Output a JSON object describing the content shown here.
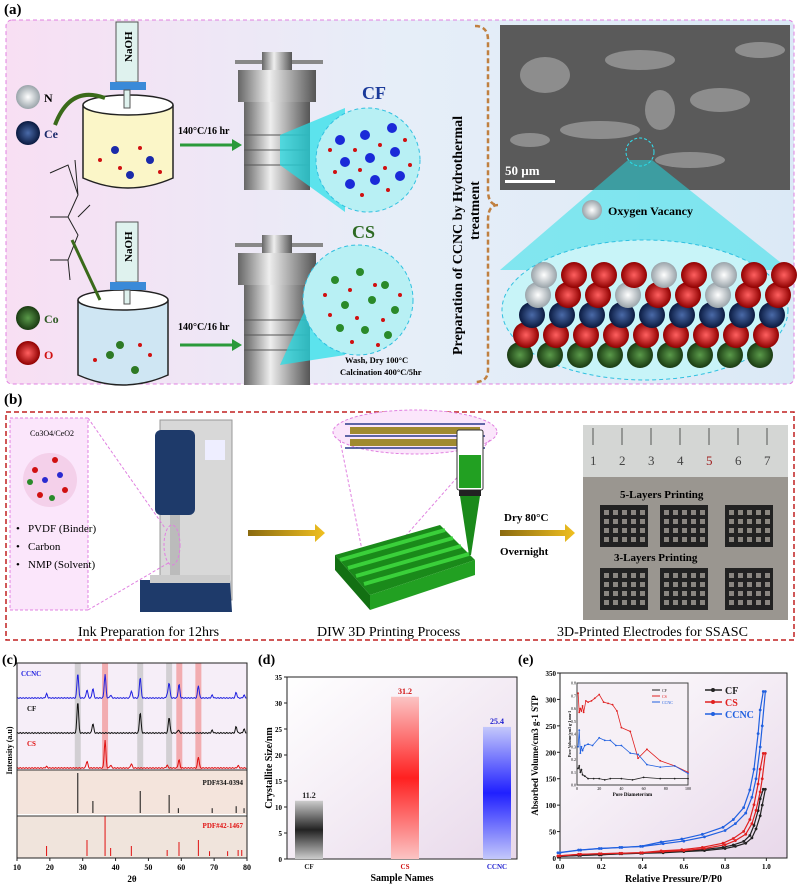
{
  "panel_a": {
    "label": "(a)",
    "legend": {
      "n": "N",
      "ce": "Ce",
      "co": "Co",
      "o": "O"
    },
    "reagent": "NaOH",
    "condition": "140°C/16 hr",
    "product_cf": "CF",
    "product_cs": "CS",
    "post_treatment_1": "Wash, Dry 100°C",
    "post_treatment_2": "Calcination 400°C/5hr",
    "side_title_1": "Preparation of CCNC by Hydrothermal",
    "side_title_2": "treatment",
    "scale_bar": "50 µm",
    "vacancy_label": "Oxygen Vacancy",
    "colors": {
      "n": "#c8d0d4",
      "ce": "#1a2a5a",
      "co": "#2e5a24",
      "o": "#d01010",
      "border": "#e080e0"
    }
  },
  "panel_b": {
    "label": "(b)",
    "ink_title": "Co3O4/CeO2",
    "ink_items": [
      "PVDF (Binder)",
      "Carbon",
      "NMP (Solvent)"
    ],
    "step1": "Ink Preparation for 12hrs",
    "step2": "DIW 3D Printing Process",
    "step3": "3D-Printed Electrodes for SSASC",
    "dry_1": "Dry 80°C",
    "dry_2": "Overnight",
    "ruler_ticks": [
      "1",
      "2",
      "3",
      "4",
      "5",
      "6",
      "7"
    ],
    "layers_5": "5-Layers Printing",
    "layers_3": "3-Layers Printing",
    "colors": {
      "border": "#c02020",
      "print": "#22b022"
    }
  },
  "chart_data": [
    {
      "panel": "(c)",
      "type": "line",
      "xlabel": "2θ",
      "ylabel": "Intensity (a.u)",
      "xlim": [
        10,
        80
      ],
      "xticks": [
        "10",
        "20",
        "30",
        "40",
        "50",
        "60",
        "70",
        "80"
      ],
      "series": [
        {
          "name": "CCNC",
          "color": "#2020e0",
          "peaks": [
            [
              19.0,
              0.15
            ],
            [
              28.5,
              0.9
            ],
            [
              31.3,
              0.3
            ],
            [
              33.1,
              0.35
            ],
            [
              36.8,
              0.85
            ],
            [
              38.5,
              0.1
            ],
            [
              44.8,
              0.25
            ],
            [
              47.5,
              0.75
            ],
            [
              55.7,
              0.12
            ],
            [
              56.3,
              0.55
            ],
            [
              59.3,
              0.5
            ],
            [
              65.2,
              0.45
            ],
            [
              69.4,
              0.1
            ],
            [
              76.7,
              0.2
            ],
            [
              79.1,
              0.1
            ]
          ]
        },
        {
          "name": "CF",
          "color": "#111111",
          "peaks": [
            [
              28.5,
              1.0
            ],
            [
              33.1,
              0.3
            ],
            [
              47.5,
              0.65
            ],
            [
              56.3,
              0.5
            ],
            [
              59.1,
              0.1
            ],
            [
              69.4,
              0.08
            ],
            [
              76.7,
              0.2
            ],
            [
              79.1,
              0.12
            ]
          ]
        },
        {
          "name": "CS",
          "color": "#e01010",
          "peaks": [
            [
              19.0,
              0.05
            ],
            [
              31.3,
              0.25
            ],
            [
              36.8,
              1.0
            ],
            [
              38.5,
              0.1
            ],
            [
              44.8,
              0.15
            ],
            [
              55.7,
              0.1
            ],
            [
              59.3,
              0.3
            ],
            [
              65.2,
              0.4
            ],
            [
              77.3,
              0.08
            ]
          ]
        }
      ],
      "references": [
        {
          "name": "PDF#34-0394",
          "color": "#111111",
          "lines": [
            [
              28.5,
              1.0
            ],
            [
              33.1,
              0.3
            ],
            [
              47.5,
              0.55
            ],
            [
              56.3,
              0.45
            ],
            [
              59.1,
              0.12
            ],
            [
              69.4,
              0.12
            ],
            [
              76.7,
              0.17
            ],
            [
              79.1,
              0.12
            ]
          ]
        },
        {
          "name": "PDF#42-1467",
          "color": "#e01010",
          "lines": [
            [
              19.0,
              0.25
            ],
            [
              31.3,
              0.4
            ],
            [
              36.8,
              1.0
            ],
            [
              38.5,
              0.2
            ],
            [
              44.8,
              0.25
            ],
            [
              55.7,
              0.15
            ],
            [
              59.3,
              0.35
            ],
            [
              65.2,
              0.4
            ],
            [
              68.6,
              0.12
            ],
            [
              74.1,
              0.12
            ],
            [
              77.3,
              0.15
            ],
            [
              78.4,
              0.15
            ]
          ]
        }
      ],
      "highlight_bands": [
        {
          "x": 28.5,
          "color": "#bbbbbb"
        },
        {
          "x": 36.8,
          "color": "#f08080"
        },
        {
          "x": 47.5,
          "color": "#bbbbbb"
        },
        {
          "x": 56.3,
          "color": "#bbbbbb"
        },
        {
          "x": 59.4,
          "color": "#f08080"
        },
        {
          "x": 65.2,
          "color": "#f08080"
        }
      ]
    },
    {
      "panel": "(d)",
      "type": "bar",
      "categories": [
        "CF",
        "CS",
        "CCNC"
      ],
      "values": [
        11.2,
        31.2,
        25.4
      ],
      "colors": [
        "#111111",
        "#ff2020",
        "#2020ff"
      ],
      "xlabel": "Sample Names",
      "ylabel": "Crystallite Size/nm",
      "ylim": [
        0,
        35
      ],
      "yticks": [
        "0",
        "5",
        "10",
        "15",
        "20",
        "25",
        "30",
        "35"
      ]
    },
    {
      "panel": "(e)",
      "type": "line",
      "xlabel": "Relative Pressure/P/P0",
      "ylabel": "Absorbed Volume/cm3 g-1 STP",
      "xlim": [
        0,
        1.1
      ],
      "ylim": [
        0,
        350
      ],
      "xticks": [
        "0.0",
        "0.2",
        "0.4",
        "0.6",
        "0.8",
        "1.0"
      ],
      "yticks": [
        "0",
        "50",
        "100",
        "150",
        "200",
        "250",
        "300",
        "350"
      ],
      "legend": "top-right",
      "series": [
        {
          "name": "CF",
          "color": "#222222",
          "points": [
            [
              0,
              3
            ],
            [
              0.1,
              5
            ],
            [
              0.2,
              6
            ],
            [
              0.3,
              8
            ],
            [
              0.4,
              9
            ],
            [
              0.5,
              10
            ],
            [
              0.6,
              12
            ],
            [
              0.7,
              14
            ],
            [
              0.8,
              18
            ],
            [
              0.85,
              22
            ],
            [
              0.9,
              28
            ],
            [
              0.93,
              38
            ],
            [
              0.95,
              55
            ],
            [
              0.97,
              80
            ],
            [
              0.98,
              100
            ],
            [
              0.995,
              130
            ]
          ]
        },
        {
          "name": "CS",
          "color": "#e02020",
          "points": [
            [
              0,
              4
            ],
            [
              0.1,
              7
            ],
            [
              0.2,
              8
            ],
            [
              0.3,
              9
            ],
            [
              0.4,
              10
            ],
            [
              0.5,
              12
            ],
            [
              0.6,
              14
            ],
            [
              0.7,
              18
            ],
            [
              0.8,
              25
            ],
            [
              0.85,
              33
            ],
            [
              0.9,
              45
            ],
            [
              0.93,
              65
            ],
            [
              0.95,
              90
            ],
            [
              0.97,
              125
            ],
            [
              0.98,
              150
            ],
            [
              0.995,
              198
            ]
          ]
        },
        {
          "name": "CCNC",
          "color": "#2060e0",
          "points": [
            [
              0,
              10
            ],
            [
              0.1,
              15
            ],
            [
              0.2,
              18
            ],
            [
              0.3,
              20
            ],
            [
              0.4,
              22
            ],
            [
              0.5,
              27
            ],
            [
              0.6,
              32
            ],
            [
              0.7,
              40
            ],
            [
              0.8,
              52
            ],
            [
              0.85,
              65
            ],
            [
              0.9,
              85
            ],
            [
              0.93,
              115
            ],
            [
              0.95,
              150
            ],
            [
              0.97,
              210
            ],
            [
              0.98,
              250
            ],
            [
              0.995,
              315
            ]
          ]
        }
      ],
      "inset": {
        "xlabel": "Pore Diameter/nm",
        "ylabel": "Pore Volume/cm3 g-1 nm-1",
        "xlim": [
          0,
          100
        ],
        "ylim": [
          0,
          0.8
        ],
        "xticks": [
          "0",
          "20",
          "40",
          "60",
          "80",
          "100"
        ],
        "yticks": [
          "0.0",
          "0.1",
          "0.2",
          "0.3",
          "0.4",
          "0.5",
          "0.6",
          "0.7",
          "0.8"
        ],
        "series": [
          {
            "name": "CF",
            "color": "#222222",
            "points": [
              [
                1,
                0.13
              ],
              [
                2,
                0.15
              ],
              [
                3,
                0.1
              ],
              [
                4,
                0.12
              ],
              [
                5,
                0.08
              ],
              [
                7,
                0.07
              ],
              [
                10,
                0.05
              ],
              [
                15,
                0.05
              ],
              [
                20,
                0.05
              ],
              [
                25,
                0.04
              ],
              [
                30,
                0.05
              ],
              [
                40,
                0.05
              ],
              [
                50,
                0.04
              ],
              [
                60,
                0.06
              ],
              [
                75,
                0.05
              ],
              [
                88,
                0.05
              ],
              [
                100,
                0.05
              ]
            ]
          },
          {
            "name": "CS",
            "color": "#e02020",
            "points": [
              [
                1,
                0.72
              ],
              [
                2,
                0.57
              ],
              [
                3,
                0.6
              ],
              [
                4,
                0.58
              ],
              [
                5,
                0.62
              ],
              [
                6,
                0.57
              ],
              [
                8,
                0.66
              ],
              [
                10,
                0.65
              ],
              [
                13,
                0.66
              ],
              [
                16,
                0.68
              ],
              [
                20,
                0.71
              ],
              [
                24,
                0.65
              ],
              [
                28,
                0.64
              ],
              [
                32,
                0.63
              ],
              [
                36,
                0.58
              ],
              [
                40,
                0.45
              ],
              [
                48,
                0.42
              ],
              [
                55,
                0.21
              ],
              [
                63,
                0.28
              ],
              [
                75,
                0.19
              ],
              [
                88,
                0.15
              ],
              [
                100,
                0.1
              ]
            ]
          },
          {
            "name": "CCNC",
            "color": "#2060e0",
            "points": [
              [
                1,
                0.3
              ],
              [
                2,
                0.43
              ],
              [
                3,
                0.25
              ],
              [
                4,
                0.3
              ],
              [
                5,
                0.27
              ],
              [
                7,
                0.31
              ],
              [
                10,
                0.32
              ],
              [
                14,
                0.31
              ],
              [
                20,
                0.37
              ],
              [
                25,
                0.35
              ],
              [
                30,
                0.35
              ],
              [
                35,
                0.31
              ],
              [
                40,
                0.31
              ],
              [
                48,
                0.25
              ],
              [
                55,
                0.24
              ],
              [
                63,
                0.16
              ],
              [
                75,
                0.14
              ],
              [
                88,
                0.15
              ],
              [
                100,
                0.09
              ]
            ]
          }
        ]
      }
    }
  ],
  "panel_labels": {
    "c": "(c)",
    "d": "(d)",
    "e": "(e)"
  }
}
